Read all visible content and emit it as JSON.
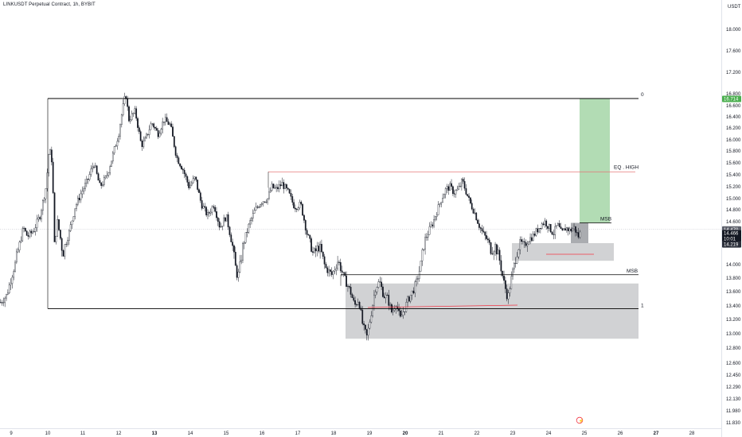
{
  "header": {
    "title": "LINKUSDT Perpetual Contract, 1h, BYBIT",
    "currency": "USDT"
  },
  "colors": {
    "up": "#ffffff",
    "down": "#131722",
    "wick": "#131722",
    "target_zone": "#a5d6a7",
    "demand_zone": "#c9cacd",
    "eq_line": "#e57373",
    "sweep_line": "#f23645",
    "level_line": "#000000"
  },
  "chart_data": {
    "type": "candlestick",
    "symbol": "LINKUSDT",
    "interval": "1h",
    "exchange": "BYBIT",
    "y_axis": {
      "ticks": [
        "18.000",
        "17.600",
        "17.200",
        "16.800",
        "16.600",
        "16.400",
        "16.200",
        "16.000",
        "15.800",
        "15.600",
        "15.400",
        "15.200",
        "15.000",
        "14.800",
        "14.600",
        "14.400",
        "14.200",
        "14.000",
        "13.800",
        "13.600",
        "13.400",
        "13.200",
        "13.000",
        "12.800",
        "12.600",
        "12.450",
        "12.290",
        "12.130",
        "11.980",
        "11.830"
      ],
      "ylim": [
        11.8,
        18.2
      ]
    },
    "x_axis": {
      "ticks": [
        {
          "label": "9",
          "bold": false
        },
        {
          "label": "10",
          "bold": false
        },
        {
          "label": "11",
          "bold": false
        },
        {
          "label": "12",
          "bold": false
        },
        {
          "label": "13",
          "bold": true
        },
        {
          "label": "14",
          "bold": false
        },
        {
          "label": "15",
          "bold": false
        },
        {
          "label": "16",
          "bold": false
        },
        {
          "label": "17",
          "bold": false
        },
        {
          "label": "18",
          "bold": false
        },
        {
          "label": "19",
          "bold": false
        },
        {
          "label": "20",
          "bold": true
        },
        {
          "label": "21",
          "bold": false
        },
        {
          "label": "22",
          "bold": false
        },
        {
          "label": "23",
          "bold": false
        },
        {
          "label": "24",
          "bold": false
        },
        {
          "label": "25",
          "bold": false
        },
        {
          "label": "26",
          "bold": false
        },
        {
          "label": "27",
          "bold": true
        },
        {
          "label": "28",
          "bold": false
        }
      ]
    },
    "price_path": [
      [
        0,
        13.45
      ],
      [
        0.3,
        13.55
      ],
      [
        0.6,
        13.9
      ],
      [
        0.9,
        14.2
      ],
      [
        1.1,
        14.5
      ],
      [
        1.3,
        14.35
      ],
      [
        1.6,
        14.45
      ],
      [
        1.9,
        14.7
      ],
      [
        2.2,
        15.2
      ],
      [
        2.35,
        15.85
      ],
      [
        2.5,
        15.6
      ],
      [
        2.6,
        14.2
      ],
      [
        2.75,
        14.6
      ],
      [
        3.0,
        14.1
      ],
      [
        3.3,
        14.4
      ],
      [
        3.6,
        14.85
      ],
      [
        3.9,
        15.1
      ],
      [
        4.2,
        15.3
      ],
      [
        4.5,
        15.6
      ],
      [
        4.8,
        15.2
      ],
      [
        5.1,
        15.35
      ],
      [
        5.4,
        15.7
      ],
      [
        5.7,
        16.1
      ],
      [
        5.9,
        16.55
      ],
      [
        6.05,
        16.8
      ],
      [
        6.2,
        16.35
      ],
      [
        6.5,
        16.5
      ],
      [
        6.8,
        15.9
      ],
      [
        7.0,
        16.0
      ],
      [
        7.3,
        16.3
      ],
      [
        7.6,
        16.1
      ],
      [
        7.9,
        16.35
      ],
      [
        8.2,
        16.25
      ],
      [
        8.5,
        15.7
      ],
      [
        8.8,
        15.5
      ],
      [
        9.1,
        15.2
      ],
      [
        9.4,
        15.35
      ],
      [
        9.7,
        14.9
      ],
      [
        10.0,
        14.7
      ],
      [
        10.3,
        14.9
      ],
      [
        10.6,
        14.5
      ],
      [
        10.9,
        14.7
      ],
      [
        11.2,
        14.2
      ],
      [
        11.45,
        13.8
      ],
      [
        11.7,
        14.2
      ],
      [
        12.0,
        14.55
      ],
      [
        12.3,
        14.8
      ],
      [
        12.6,
        14.95
      ],
      [
        12.9,
        15.0
      ],
      [
        13.1,
        15.2
      ],
      [
        13.3,
        15.15
      ],
      [
        13.6,
        15.25
      ],
      [
        13.9,
        15.1
      ],
      [
        14.2,
        14.85
      ],
      [
        14.5,
        14.9
      ],
      [
        14.8,
        14.4
      ],
      [
        15.1,
        14.1
      ],
      [
        15.4,
        14.2
      ],
      [
        15.7,
        13.95
      ],
      [
        16.0,
        13.85
      ],
      [
        16.3,
        14.05
      ],
      [
        16.6,
        13.8
      ],
      [
        16.9,
        13.6
      ],
      [
        17.1,
        13.4
      ],
      [
        17.3,
        13.5
      ],
      [
        17.5,
        13.1
      ],
      [
        17.7,
        12.95
      ],
      [
        17.9,
        13.3
      ],
      [
        18.1,
        13.65
      ],
      [
        18.3,
        13.75
      ],
      [
        18.5,
        13.55
      ],
      [
        18.7,
        13.5
      ],
      [
        18.9,
        13.3
      ],
      [
        19.1,
        13.45
      ],
      [
        19.3,
        13.2
      ],
      [
        19.5,
        13.35
      ],
      [
        19.7,
        13.5
      ],
      [
        19.9,
        13.6
      ],
      [
        20.1,
        13.75
      ],
      [
        20.3,
        14.0
      ],
      [
        20.5,
        14.3
      ],
      [
        20.7,
        14.45
      ],
      [
        20.9,
        14.6
      ],
      [
        21.1,
        14.8
      ],
      [
        21.3,
        15.0
      ],
      [
        21.5,
        15.15
      ],
      [
        21.7,
        15.2
      ],
      [
        21.9,
        15.1
      ],
      [
        22.1,
        15.15
      ],
      [
        22.3,
        15.3
      ],
      [
        22.5,
        15.1
      ],
      [
        22.7,
        14.9
      ],
      [
        22.9,
        14.75
      ],
      [
        23.1,
        14.55
      ],
      [
        23.3,
        14.4
      ],
      [
        23.5,
        14.3
      ],
      [
        23.7,
        14.15
      ],
      [
        23.9,
        14.2
      ],
      [
        24.1,
        14.05
      ],
      [
        24.3,
        13.75
      ],
      [
        24.5,
        13.5
      ],
      [
        24.7,
        13.85
      ],
      [
        24.9,
        14.1
      ],
      [
        25.1,
        14.25
      ],
      [
        25.3,
        14.2
      ],
      [
        25.5,
        14.3
      ],
      [
        25.7,
        14.35
      ],
      [
        25.9,
        14.45
      ],
      [
        26.1,
        14.55
      ],
      [
        26.3,
        14.6
      ],
      [
        26.5,
        14.5
      ],
      [
        26.7,
        14.4
      ],
      [
        26.9,
        14.55
      ],
      [
        27.1,
        14.4
      ],
      [
        27.3,
        14.5
      ],
      [
        27.5,
        14.45
      ],
      [
        27.7,
        14.5
      ],
      [
        27.9,
        14.35
      ],
      [
        28.05,
        14.45
      ]
    ],
    "drawings": {
      "fib_top": {
        "price": 16.72,
        "label": "0"
      },
      "fib_bottom": {
        "price": 13.36,
        "label": "1"
      },
      "eq_high": {
        "price": 15.45,
        "label": "EQ . HIGH"
      },
      "msb_upper": {
        "price": 14.58,
        "label": "MSB"
      },
      "msb_lower": {
        "price": 13.85,
        "label": "MSB"
      },
      "demand_zone_main": {
        "low": 12.93,
        "high": 13.72
      },
      "demand_zone_small": {
        "low": 14.04,
        "high": 14.24
      },
      "target_zone": {
        "low": 14.58,
        "high": 16.72
      }
    },
    "price_tags": [
      {
        "value": "16.714",
        "bg": "#4caf50",
        "fg": "#ffffff",
        "price": 16.714
      },
      {
        "value": "14.470",
        "bg": "#5d606b",
        "fg": "#ffffff",
        "price": 14.47
      },
      {
        "value": "14.466",
        "bg": "#131722",
        "fg": "#ffffff",
        "price": 14.405
      },
      {
        "value": "10:01",
        "bg": "#131722",
        "fg": "#ffffff",
        "price": 14.315
      },
      {
        "value": "14.219",
        "bg": "#2a2e39",
        "fg": "#ffffff",
        "price": 14.219
      }
    ]
  }
}
